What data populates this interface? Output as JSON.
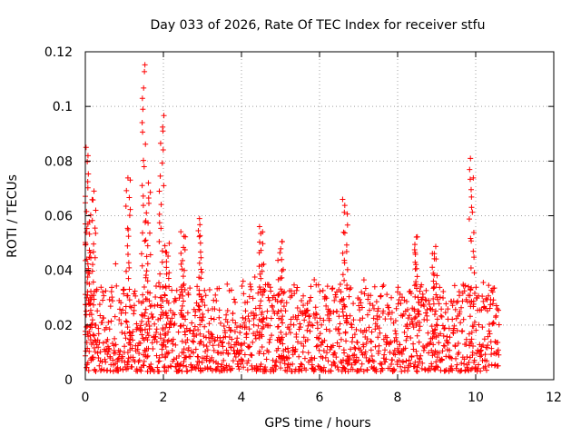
{
  "chart_data": {
    "type": "scatter",
    "title": "Day 033 of 2026, Rate Of TEC Index for receiver stfu",
    "xlabel": "GPS time / hours",
    "ylabel": "ROTI / TECUs",
    "xlim": [
      0,
      12
    ],
    "ylim": [
      0,
      0.12
    ],
    "xticks": [
      0,
      2,
      4,
      6,
      8,
      10,
      12
    ],
    "yticks": [
      0,
      0.02,
      0.04,
      0.06,
      0.08,
      0.1,
      0.12
    ],
    "xtick_labels": [
      "0",
      "2",
      "4",
      "6",
      "8",
      "10",
      "12"
    ],
    "ytick_labels": [
      "0",
      "0.02",
      "0.04",
      "0.06",
      "0.08",
      "0.1",
      "0.12"
    ],
    "grid": true,
    "marker": "+",
    "color": "#ff0000",
    "series": [
      {
        "name": "ROTI",
        "x_range": [
          0,
          10.6
        ],
        "baseline_range": [
          0.003,
          0.035
        ],
        "peaks": [
          {
            "x": 0.02,
            "y": 0.085
          },
          {
            "x": 0.08,
            "y": 0.058
          },
          {
            "x": 0.2,
            "y": 0.069
          },
          {
            "x": 1.1,
            "y": 0.075
          },
          {
            "x": 1.5,
            "y": 0.116
          },
          {
            "x": 1.6,
            "y": 0.072
          },
          {
            "x": 1.95,
            "y": 0.097
          },
          {
            "x": 2.1,
            "y": 0.05
          },
          {
            "x": 2.5,
            "y": 0.055
          },
          {
            "x": 2.95,
            "y": 0.059
          },
          {
            "x": 4.5,
            "y": 0.056
          },
          {
            "x": 5.0,
            "y": 0.051
          },
          {
            "x": 6.65,
            "y": 0.066
          },
          {
            "x": 8.5,
            "y": 0.053
          },
          {
            "x": 8.95,
            "y": 0.049
          },
          {
            "x": 9.9,
            "y": 0.081
          }
        ]
      }
    ]
  }
}
